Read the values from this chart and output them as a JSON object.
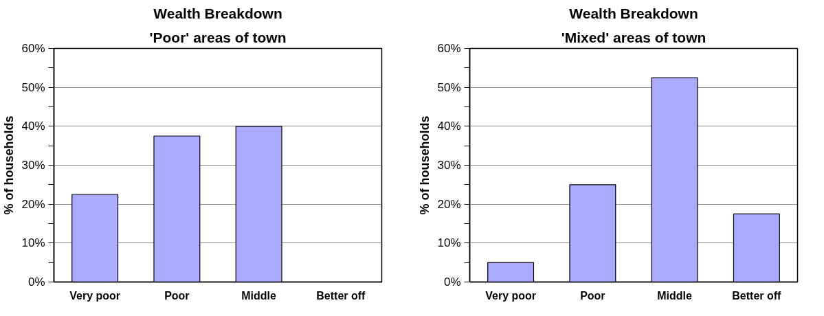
{
  "chart_data": [
    {
      "type": "bar",
      "title": "Wealth Breakdown",
      "subtitle": "'Poor' areas of town",
      "ylabel": "% of households",
      "categories": [
        "Very poor",
        "Poor",
        "Middle",
        "Better off"
      ],
      "values": [
        22.5,
        37.5,
        40,
        0
      ],
      "color": "#aaaaff",
      "ylim": [
        0,
        60
      ],
      "yticks": [
        {
          "value": 0,
          "label": "0%"
        },
        {
          "value": 5,
          "label": null
        },
        {
          "value": 10,
          "label": "10%"
        },
        {
          "value": 15,
          "label": null
        },
        {
          "value": 20,
          "label": "20%"
        },
        {
          "value": 25,
          "label": null
        },
        {
          "value": 30,
          "label": "30%"
        },
        {
          "value": 35,
          "label": null
        },
        {
          "value": 40,
          "label": "40%"
        },
        {
          "value": 45,
          "label": null
        },
        {
          "value": 50,
          "label": "50%"
        },
        {
          "value": 55,
          "label": null
        },
        {
          "value": 60,
          "label": "60%"
        }
      ],
      "grid": "y"
    },
    {
      "type": "bar",
      "title": "Wealth Breakdown",
      "subtitle": "'Mixed' areas of town",
      "ylabel": "% of households",
      "categories": [
        "Very poor",
        "Poor",
        "Middle",
        "Better off"
      ],
      "values": [
        5,
        25,
        52.5,
        17.5
      ],
      "color": "#aaaaff",
      "ylim": [
        0,
        60
      ],
      "yticks": [
        {
          "value": 0,
          "label": "0%"
        },
        {
          "value": 5,
          "label": null
        },
        {
          "value": 10,
          "label": "10%"
        },
        {
          "value": 15,
          "label": null
        },
        {
          "value": 20,
          "label": "20%"
        },
        {
          "value": 25,
          "label": null
        },
        {
          "value": 30,
          "label": "30%"
        },
        {
          "value": 35,
          "label": null
        },
        {
          "value": 40,
          "label": "40%"
        },
        {
          "value": 45,
          "label": null
        },
        {
          "value": 50,
          "label": "50%"
        },
        {
          "value": 55,
          "label": null
        },
        {
          "value": 60,
          "label": "60%"
        }
      ],
      "grid": "y"
    }
  ]
}
